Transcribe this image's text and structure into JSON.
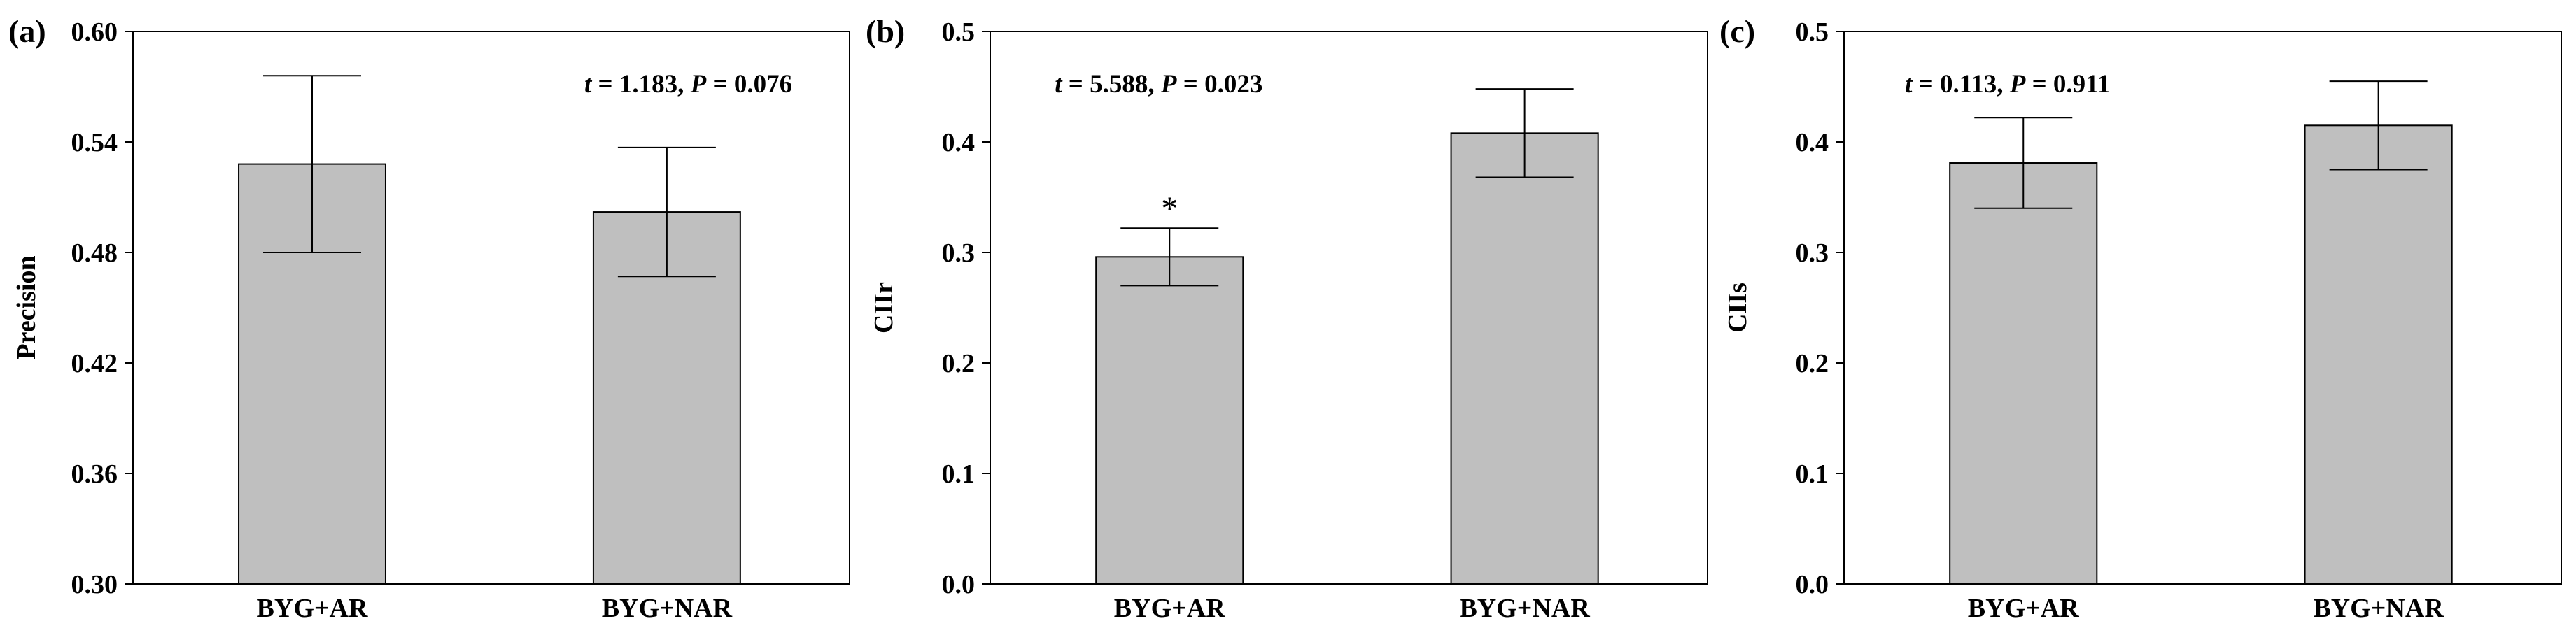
{
  "chart_data": [
    {
      "type": "bar",
      "panel_label": "(a)",
      "categories": [
        "BYG+AR",
        "BYG+NAR"
      ],
      "values": [
        0.528,
        0.502
      ],
      "error": [
        0.048,
        0.035
      ],
      "ylabel": "Precision",
      "xlabel": "",
      "ylim": [
        0.3,
        0.6
      ],
      "yticks": [
        "0.30",
        "0.36",
        "0.42",
        "0.48",
        "0.54",
        "0.60"
      ],
      "annotation_stat": {
        "t_italic": "t",
        "t_rest": " = 1.183, ",
        "p_italic": "P",
        "p_rest": " = 0.076"
      },
      "marks": []
    },
    {
      "type": "bar",
      "panel_label": "(b)",
      "categories": [
        "BYG+AR",
        "BYG+NAR"
      ],
      "values": [
        0.296,
        0.408
      ],
      "error": [
        0.026,
        0.04
      ],
      "ylabel": "CIIr",
      "xlabel": "",
      "ylim": [
        0.0,
        0.5
      ],
      "yticks": [
        "0.0",
        "0.1",
        "0.2",
        "0.3",
        "0.4",
        "0.5"
      ],
      "annotation_stat": {
        "t_italic": "t",
        "t_rest": " = 5.588, ",
        "p_italic": "P",
        "p_rest": " = 0.023"
      },
      "marks": [
        "*",
        ""
      ]
    },
    {
      "type": "bar",
      "panel_label": "(c)",
      "categories": [
        "BYG+AR",
        "BYG+NAR"
      ],
      "values": [
        0.381,
        0.415
      ],
      "error": [
        0.041,
        0.04
      ],
      "ylabel": "CIIs",
      "xlabel": "",
      "ylim": [
        0.0,
        0.5
      ],
      "yticks": [
        "0.0",
        "0.1",
        "0.2",
        "0.3",
        "0.4",
        "0.5"
      ],
      "annotation_stat": {
        "t_italic": "t",
        "t_rest": " = 0.113, ",
        "p_italic": "P",
        "p_rest": " = 0.911"
      },
      "marks": []
    }
  ]
}
